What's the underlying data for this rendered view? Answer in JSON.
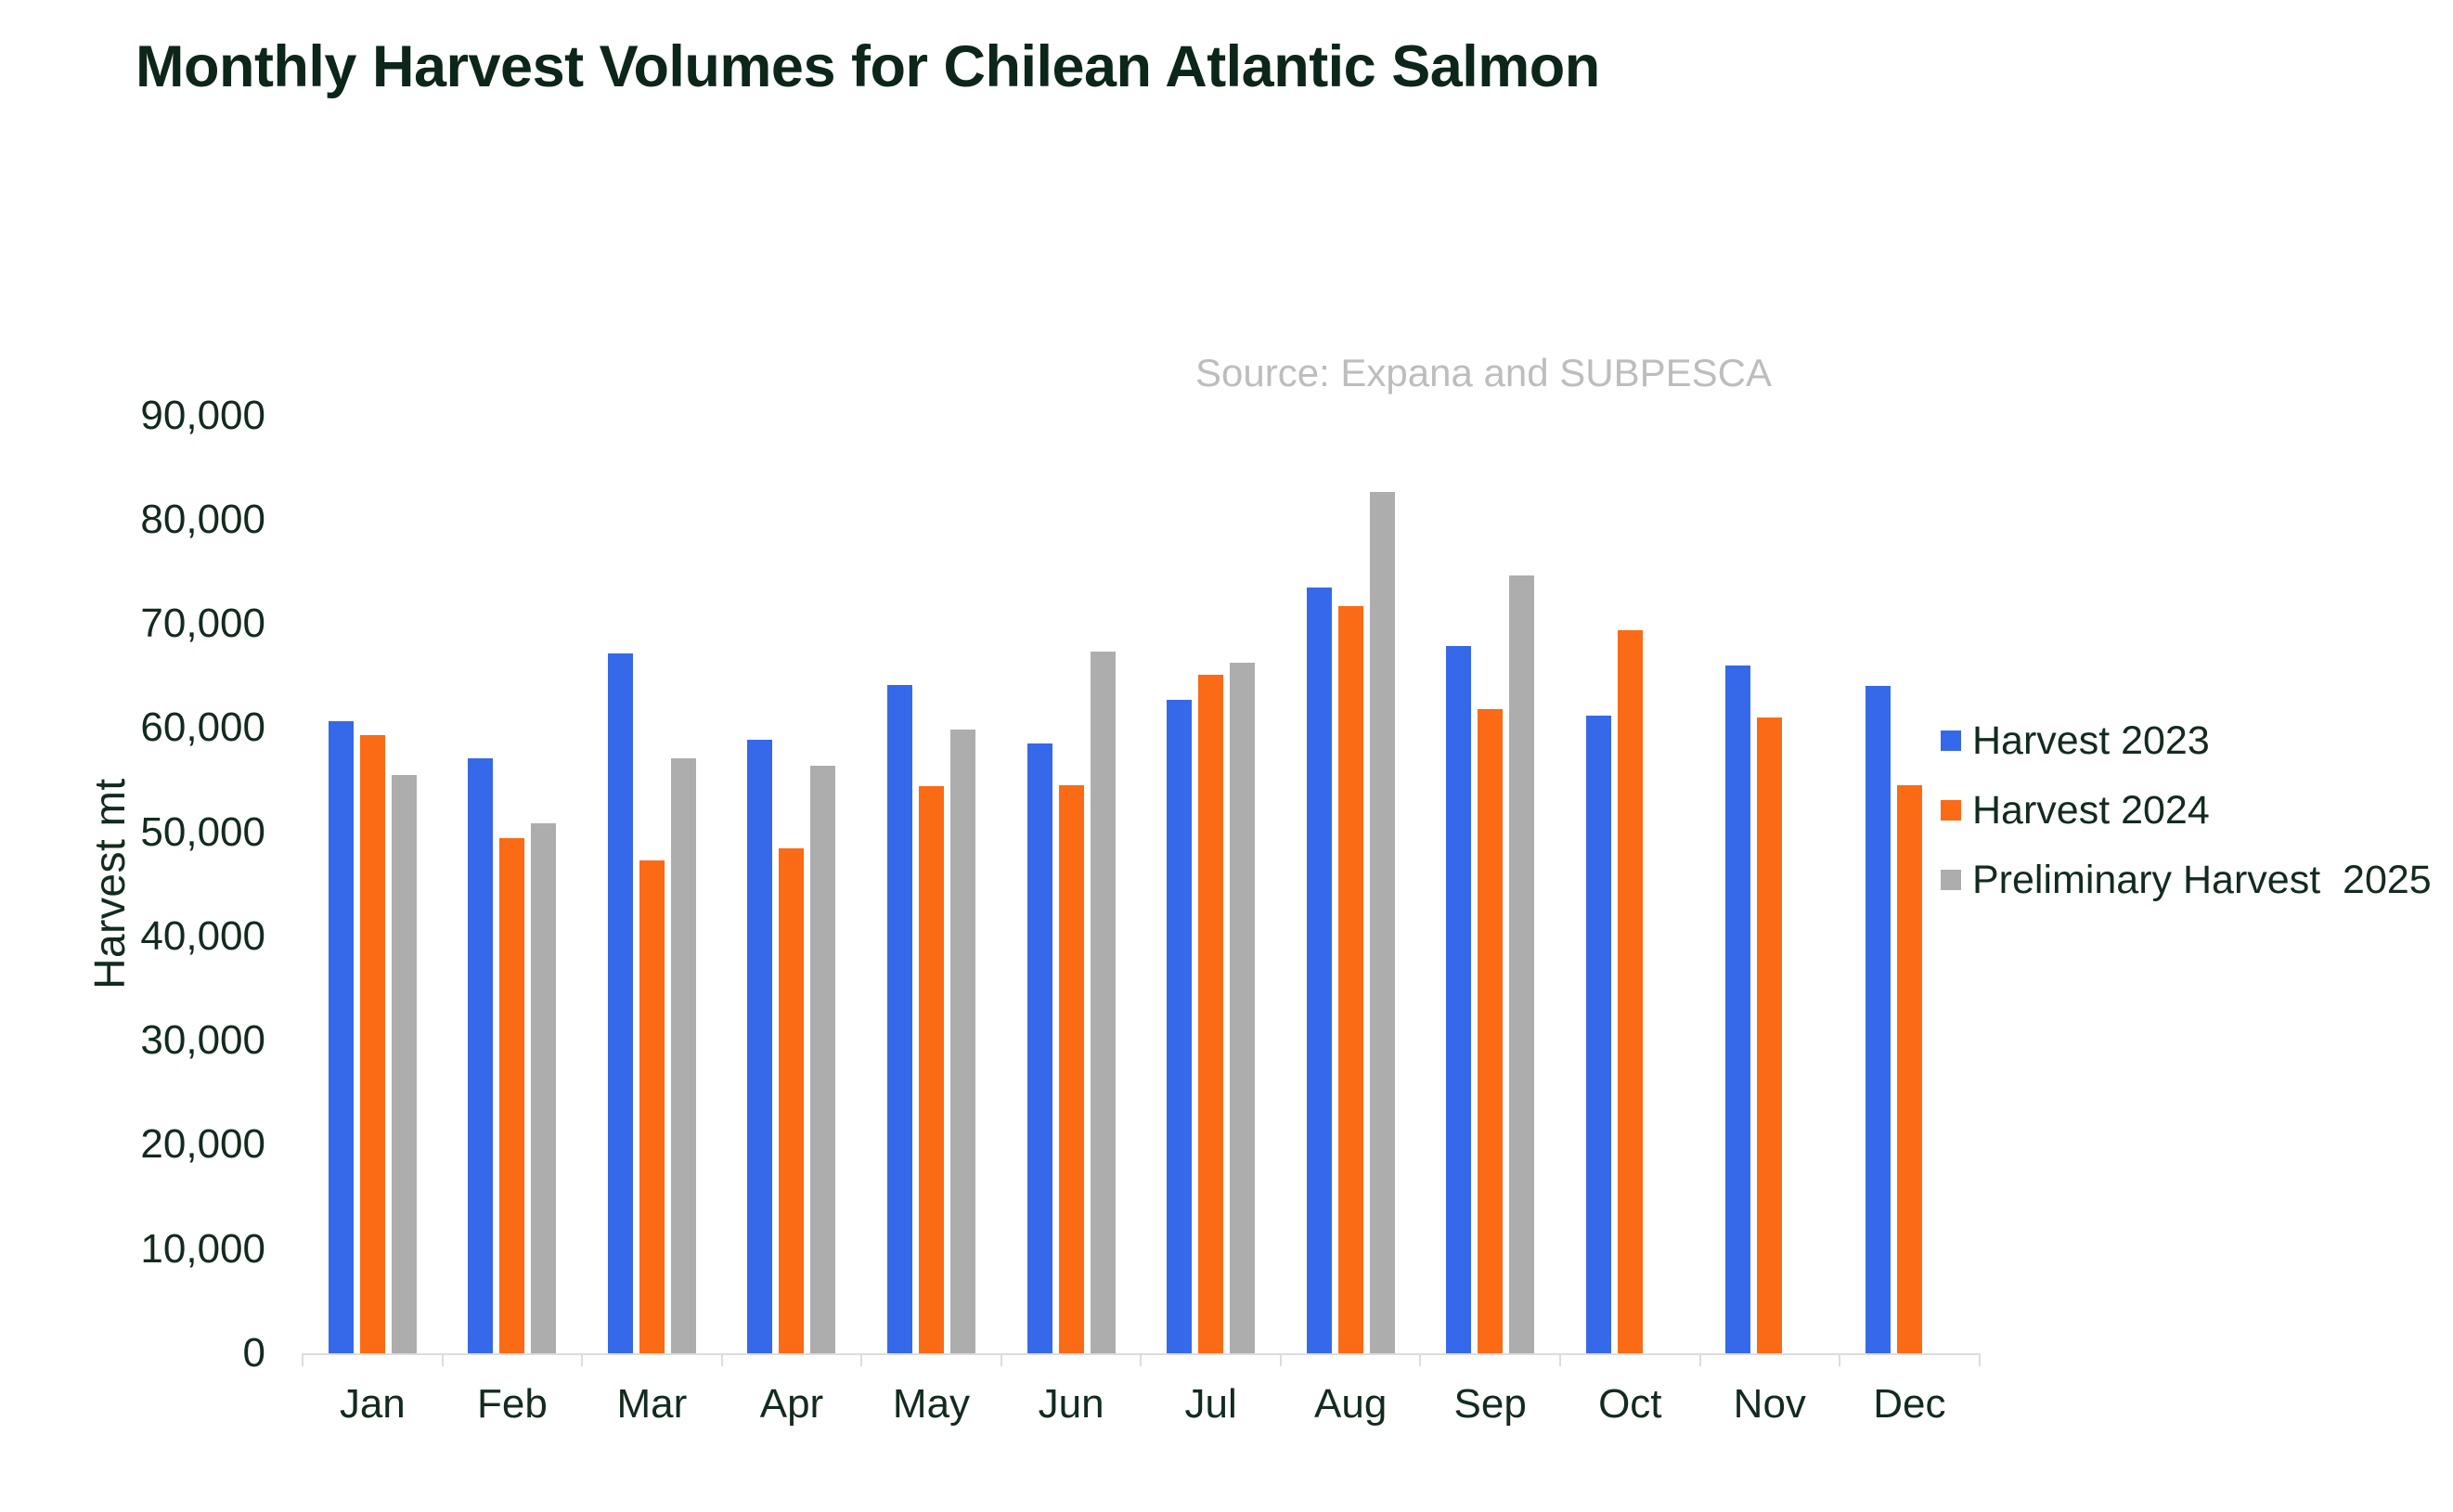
{
  "title": "Monthly Harvest Volumes for Chilean Atlantic Salmon",
  "source_note": "Source: Expana and SUBPESCA",
  "y_axis": {
    "title": "Harvest mt",
    "tick_labels": [
      "90,000",
      "80,000",
      "70,000",
      "60,000",
      "50,000",
      "40,000",
      "30,000",
      "20,000",
      "10,000",
      "0"
    ]
  },
  "legend": [
    {
      "label": "Harvest 2023",
      "color": "#3569e9"
    },
    {
      "label": "Harvest 2024",
      "color": "#fb6a15"
    },
    {
      "label": "Preliminary Harvest  2025",
      "color": "#aeadae"
    }
  ],
  "colors": {
    "blue_2023": "#3569e9",
    "orange_2024": "#fb6a15",
    "gray_2025": "#aeadae",
    "axis_line": "#dcdcdc",
    "text": "#122b1e",
    "source_text": "#bdbdbd"
  },
  "chart_data": {
    "type": "bar",
    "title": "Monthly Harvest Volumes for Chilean Atlantic Salmon",
    "xlabel": "",
    "ylabel": "Harvest mt",
    "ylim": [
      0,
      90000
    ],
    "ytick_step": 10000,
    "grid": false,
    "legend_position": "right",
    "categories": [
      "Jan",
      "Feb",
      "Mar",
      "Apr",
      "May",
      "Jun",
      "Jul",
      "Aug",
      "Sep",
      "Oct",
      "Nov",
      "Dec"
    ],
    "series": [
      {
        "name": "Harvest 2023",
        "color": "#3569e9",
        "values": [
          60700,
          57100,
          67200,
          58900,
          64100,
          58500,
          62700,
          73500,
          67900,
          61200,
          66000,
          64000
        ]
      },
      {
        "name": "Harvest 2024",
        "color": "#fb6a15",
        "values": [
          59300,
          49400,
          47300,
          48500,
          54400,
          54500,
          65100,
          71700,
          61800,
          69400,
          61000,
          54500
        ]
      },
      {
        "name": "Preliminary Harvest  2025",
        "color": "#aeadae",
        "values": [
          55500,
          50900,
          57100,
          56400,
          59900,
          67300,
          66300,
          82700,
          74600,
          null,
          null,
          null
        ]
      }
    ]
  }
}
